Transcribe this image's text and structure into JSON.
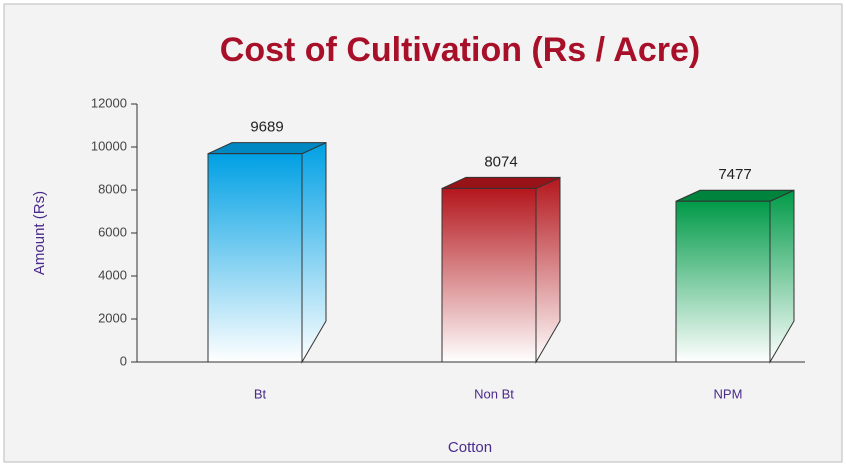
{
  "chart_data": {
    "type": "bar3d",
    "title": "Cost of Cultivation (Rs / Acre)",
    "x_label": "Cotton",
    "y_label": "Amount (Rs)",
    "categories": [
      "Bt",
      "Non Bt",
      "NPM"
    ],
    "values": [
      9689,
      8074,
      7477
    ],
    "colors": [
      "#00a0e4",
      "#b3161c",
      "#009a48"
    ],
    "ylim": [
      0,
      12000
    ],
    "yticks": [
      0,
      2000,
      4000,
      6000,
      8000,
      10000,
      12000
    ]
  }
}
